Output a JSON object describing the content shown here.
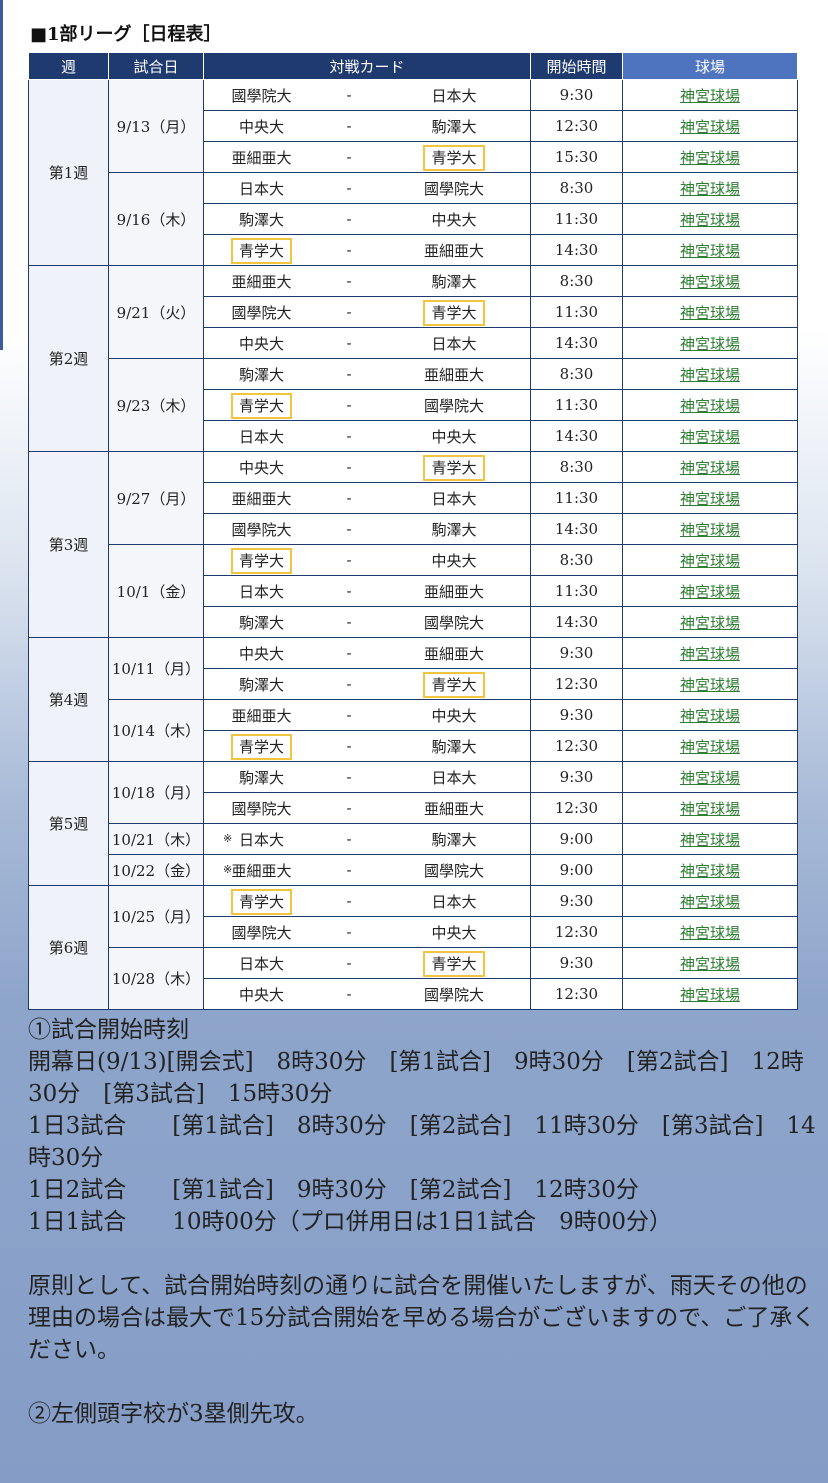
{
  "section_title": "■1部リーグ［日程表］",
  "headers": {
    "week": "週",
    "date": "試合日",
    "card": "対戦カード",
    "time": "開始時間",
    "venue": "球場"
  },
  "weeks": [
    {
      "label": "第1週",
      "days": [
        {
          "date": "9/13（月）",
          "games": [
            {
              "mark": "",
              "home": "國學院大",
              "sep": "-",
              "away": "日本大",
              "time": "9:30",
              "venue": "神宮球場",
              "hl": ""
            },
            {
              "mark": "",
              "home": "中央大",
              "sep": "-",
              "away": "駒澤大",
              "time": "12:30",
              "venue": "神宮球場",
              "hl": ""
            },
            {
              "mark": "",
              "home": "亜細亜大",
              "sep": "-",
              "away": "青学大",
              "time": "15:30",
              "venue": "神宮球場",
              "hl": "away"
            }
          ]
        },
        {
          "date": "9/16（木）",
          "games": [
            {
              "mark": "",
              "home": "日本大",
              "sep": "-",
              "away": "國學院大",
              "time": "8:30",
              "venue": "神宮球場",
              "hl": ""
            },
            {
              "mark": "",
              "home": "駒澤大",
              "sep": "-",
              "away": "中央大",
              "time": "11:30",
              "venue": "神宮球場",
              "hl": ""
            },
            {
              "mark": "",
              "home": "青学大",
              "sep": "-",
              "away": "亜細亜大",
              "time": "14:30",
              "venue": "神宮球場",
              "hl": "home"
            }
          ]
        }
      ]
    },
    {
      "label": "第2週",
      "days": [
        {
          "date": "9/21（火）",
          "games": [
            {
              "mark": "",
              "home": "亜細亜大",
              "sep": "-",
              "away": "駒澤大",
              "time": "8:30",
              "venue": "神宮球場",
              "hl": ""
            },
            {
              "mark": "",
              "home": "國學院大",
              "sep": "-",
              "away": "青学大",
              "time": "11:30",
              "venue": "神宮球場",
              "hl": "away"
            },
            {
              "mark": "",
              "home": "中央大",
              "sep": "-",
              "away": "日本大",
              "time": "14:30",
              "venue": "神宮球場",
              "hl": ""
            }
          ]
        },
        {
          "date": "9/23（木）",
          "games": [
            {
              "mark": "",
              "home": "駒澤大",
              "sep": "-",
              "away": "亜細亜大",
              "time": "8:30",
              "venue": "神宮球場",
              "hl": ""
            },
            {
              "mark": "",
              "home": "青学大",
              "sep": "-",
              "away": "國學院大",
              "time": "11:30",
              "venue": "神宮球場",
              "hl": "home"
            },
            {
              "mark": "",
              "home": "日本大",
              "sep": "-",
              "away": "中央大",
              "time": "14:30",
              "venue": "神宮球場",
              "hl": ""
            }
          ]
        }
      ]
    },
    {
      "label": "第3週",
      "days": [
        {
          "date": "9/27（月）",
          "games": [
            {
              "mark": "",
              "home": "中央大",
              "sep": "-",
              "away": "青学大",
              "time": "8:30",
              "venue": "神宮球場",
              "hl": "away"
            },
            {
              "mark": "",
              "home": "亜細亜大",
              "sep": "-",
              "away": "日本大",
              "time": "11:30",
              "venue": "神宮球場",
              "hl": ""
            },
            {
              "mark": "",
              "home": "國學院大",
              "sep": "-",
              "away": "駒澤大",
              "time": "14:30",
              "venue": "神宮球場",
              "hl": ""
            }
          ]
        },
        {
          "date": "10/1（金）",
          "games": [
            {
              "mark": "",
              "home": "青学大",
              "sep": "-",
              "away": "中央大",
              "time": "8:30",
              "venue": "神宮球場",
              "hl": "home"
            },
            {
              "mark": "",
              "home": "日本大",
              "sep": "-",
              "away": "亜細亜大",
              "time": "11:30",
              "venue": "神宮球場",
              "hl": ""
            },
            {
              "mark": "",
              "home": "駒澤大",
              "sep": "-",
              "away": "國學院大",
              "time": "14:30",
              "venue": "神宮球場",
              "hl": ""
            }
          ]
        }
      ]
    },
    {
      "label": "第4週",
      "days": [
        {
          "date": "10/11（月）",
          "games": [
            {
              "mark": "",
              "home": "中央大",
              "sep": "-",
              "away": "亜細亜大",
              "time": "9:30",
              "venue": "神宮球場",
              "hl": ""
            },
            {
              "mark": "",
              "home": "駒澤大",
              "sep": "-",
              "away": "青学大",
              "time": "12:30",
              "venue": "神宮球場",
              "hl": "away"
            }
          ]
        },
        {
          "date": "10/14（木）",
          "games": [
            {
              "mark": "",
              "home": "亜細亜大",
              "sep": "-",
              "away": "中央大",
              "time": "9:30",
              "venue": "神宮球場",
              "hl": ""
            },
            {
              "mark": "",
              "home": "青学大",
              "sep": "-",
              "away": "駒澤大",
              "time": "12:30",
              "venue": "神宮球場",
              "hl": "home"
            }
          ]
        }
      ]
    },
    {
      "label": "第5週",
      "days": [
        {
          "date": "10/18（月）",
          "games": [
            {
              "mark": "",
              "home": "駒澤大",
              "sep": "-",
              "away": "日本大",
              "time": "9:30",
              "venue": "神宮球場",
              "hl": ""
            },
            {
              "mark": "",
              "home": "國學院大",
              "sep": "-",
              "away": "亜細亜大",
              "time": "12:30",
              "venue": "神宮球場",
              "hl": ""
            }
          ]
        },
        {
          "date": "10/21（木）",
          "games": [
            {
              "mark": "※",
              "home": "日本大",
              "sep": "-",
              "away": "駒澤大",
              "time": "9:00",
              "venue": "神宮球場",
              "hl": ""
            }
          ]
        },
        {
          "date": "10/22（金）",
          "games": [
            {
              "mark": "※",
              "home": "亜細亜大",
              "sep": "-",
              "away": "國學院大",
              "time": "9:00",
              "venue": "神宮球場",
              "hl": ""
            }
          ]
        }
      ]
    },
    {
      "label": "第6週",
      "days": [
        {
          "date": "10/25（月）",
          "games": [
            {
              "mark": "",
              "home": "青学大",
              "sep": "-",
              "away": "日本大",
              "time": "9:30",
              "venue": "神宮球場",
              "hl": "home"
            },
            {
              "mark": "",
              "home": "國學院大",
              "sep": "-",
              "away": "中央大",
              "time": "12:30",
              "venue": "神宮球場",
              "hl": ""
            }
          ]
        },
        {
          "date": "10/28（木）",
          "games": [
            {
              "mark": "",
              "home": "日本大",
              "sep": "-",
              "away": "青学大",
              "time": "9:30",
              "venue": "神宮球場",
              "hl": "away"
            },
            {
              "mark": "",
              "home": "中央大",
              "sep": "-",
              "away": "國學院大",
              "time": "12:30",
              "venue": "神宮球場",
              "hl": ""
            }
          ]
        }
      ]
    }
  ],
  "notes": {
    "p1": "①試合開始時刻",
    "p2": "開幕日(9/13)[開会式]　8時30分　[第1試合]　9時30分　[第2試合]　12時30分　[第3試合]　15時30分",
    "p3": "1日3試合　　[第1試合]　8時30分　[第2試合]　11時30分　[第3試合]　14時30分",
    "p4": "1日2試合　　[第1試合]　9時30分　[第2試合]　12時30分",
    "p5": "1日1試合　　10時00分（プロ併用日は1日1試合　9時00分）",
    "p6": "原則として、試合開始時刻の通りに試合を開催いたしますが、雨天その他の理由の場合は最大で15分試合開始を早める場合がございますので、ご了承ください。",
    "p7": "②左側頭字校が3塁側先攻。"
  },
  "colors": {
    "header": "#1f3a6e",
    "venue_header": "#4e74c0",
    "highlight": "#f2c440",
    "link": "#2e7d32"
  }
}
